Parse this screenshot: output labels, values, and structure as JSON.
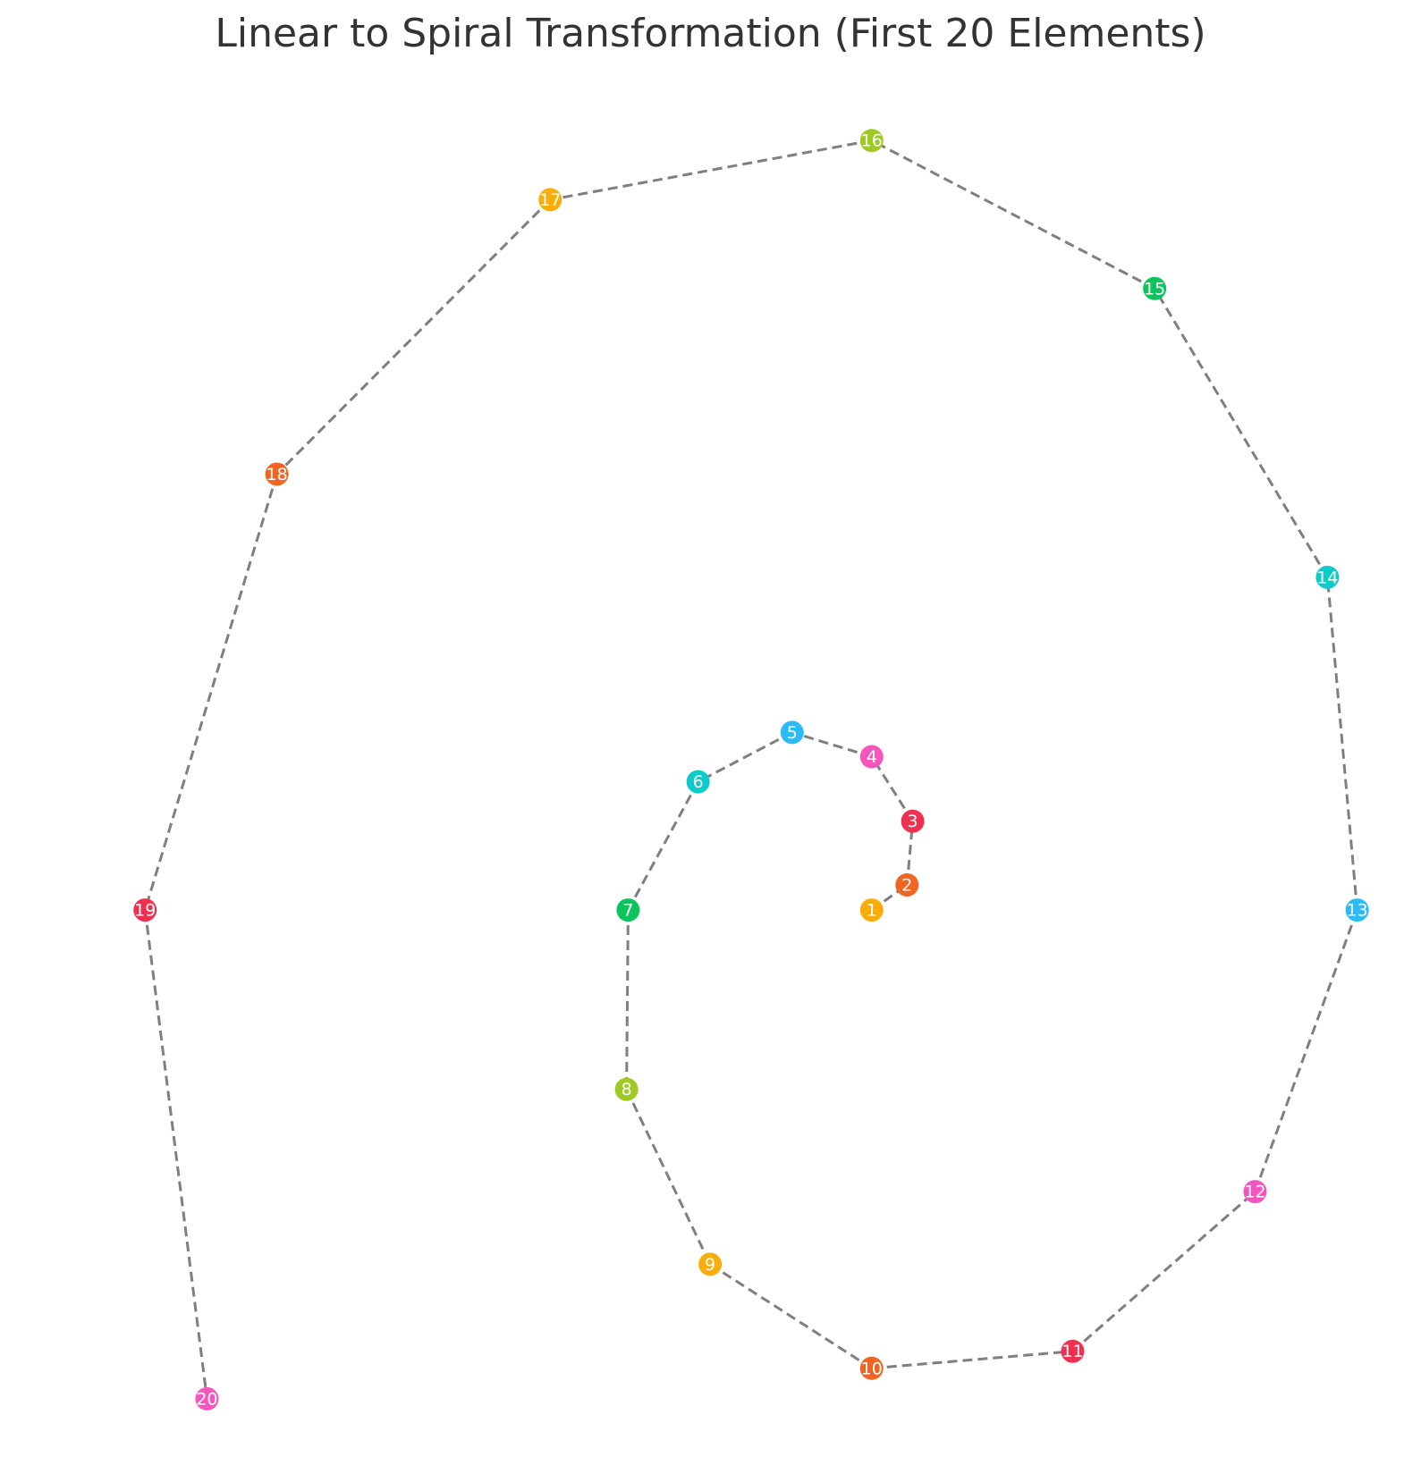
{
  "chart_data": {
    "type": "scatter",
    "title": "Linear to Spiral Transformation (First 20 Elements)",
    "xlabel": "",
    "ylabel": "",
    "axes_visible": false,
    "grid": false,
    "connector": {
      "style": "dashed",
      "color": "#7f7f7f"
    },
    "xlim": [
      -10.4,
      6.4
    ],
    "ylim": [
      -5.8,
      9.2
    ],
    "points": [
      {
        "label": "1",
        "x": 0.0,
        "y": 0.0,
        "color": "#f9ad0b"
      },
      {
        "label": "2",
        "x": 0.44,
        "y": 0.28,
        "color": "#f16522"
      },
      {
        "label": "3",
        "x": 0.51,
        "y": 0.99,
        "color": "#f0304f"
      },
      {
        "label": "4",
        "x": 0.0,
        "y": 1.71,
        "color": "#f456bd"
      },
      {
        "label": "5",
        "x": -0.99,
        "y": 1.98,
        "color": "#2abbf8"
      },
      {
        "label": "6",
        "x": -2.16,
        "y": 1.43,
        "color": "#0ecac8"
      },
      {
        "label": "7",
        "x": -3.03,
        "y": 0.0,
        "color": "#0cc45c"
      },
      {
        "label": "8",
        "x": -3.05,
        "y": -2.0,
        "color": "#9dcb23"
      },
      {
        "label": "9",
        "x": -2.01,
        "y": -3.95,
        "color": "#f9ad0b"
      },
      {
        "label": "10",
        "x": 0.0,
        "y": -5.11,
        "color": "#f16522"
      },
      {
        "label": "11",
        "x": 2.5,
        "y": -4.92,
        "color": "#f0304f"
      },
      {
        "label": "12",
        "x": 4.77,
        "y": -3.14,
        "color": "#f456bd"
      },
      {
        "label": "13",
        "x": 6.04,
        "y": 0.0,
        "color": "#2abbf8"
      },
      {
        "label": "14",
        "x": 5.67,
        "y": 3.71,
        "color": "#0ecac8"
      },
      {
        "label": "15",
        "x": 3.52,
        "y": 6.93,
        "color": "#0cc45c"
      },
      {
        "label": "16",
        "x": 0.0,
        "y": 8.58,
        "color": "#9dcb23"
      },
      {
        "label": "17",
        "x": -4.0,
        "y": 7.92,
        "color": "#f9ad0b"
      },
      {
        "label": "18",
        "x": -7.4,
        "y": 4.86,
        "color": "#f16522"
      },
      {
        "label": "19",
        "x": -9.04,
        "y": 0.0,
        "color": "#f0304f"
      },
      {
        "label": "20",
        "x": -8.27,
        "y": -5.45,
        "color": "#f456bd"
      }
    ]
  }
}
